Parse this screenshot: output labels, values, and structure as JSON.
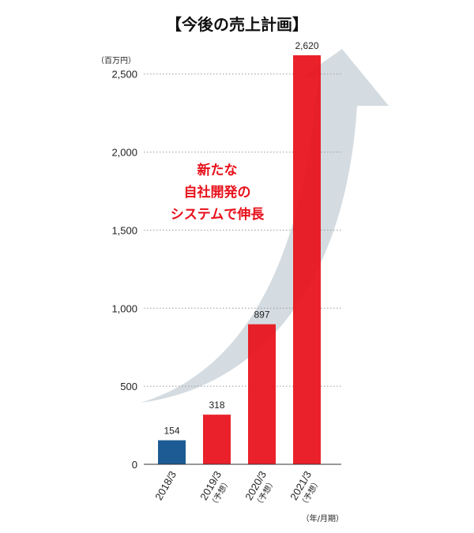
{
  "chart_data": {
    "type": "bar",
    "title": "【今後の売上計画】",
    "unit_label": "（百万円）",
    "xlabel_unit": "（年/月期）",
    "categories": [
      "2018/3",
      "2019/3",
      "2020/3",
      "2021/3"
    ],
    "category_notes": [
      "",
      "（予想）",
      "（予想）",
      "（予想）"
    ],
    "values": [
      154,
      318,
      897,
      2620
    ],
    "value_labels": [
      "154",
      "318",
      "897",
      "2,620"
    ],
    "yticks": [
      0,
      500,
      1000,
      1500,
      2000,
      2500
    ],
    "ytick_labels": [
      "0",
      "500",
      "1,000",
      "1,500",
      "2,000",
      "2,500"
    ],
    "ylim": [
      0,
      2620
    ],
    "grid": true,
    "annotation": [
      "新たな",
      "自社開発の",
      "システムで伸長"
    ],
    "colors": {
      "actual": "#1c5b93",
      "forecast": "#e8101a",
      "annotation": "#e8101a",
      "arrow": "#c9d3da",
      "axis": "#333333",
      "grid": "#999999"
    }
  }
}
